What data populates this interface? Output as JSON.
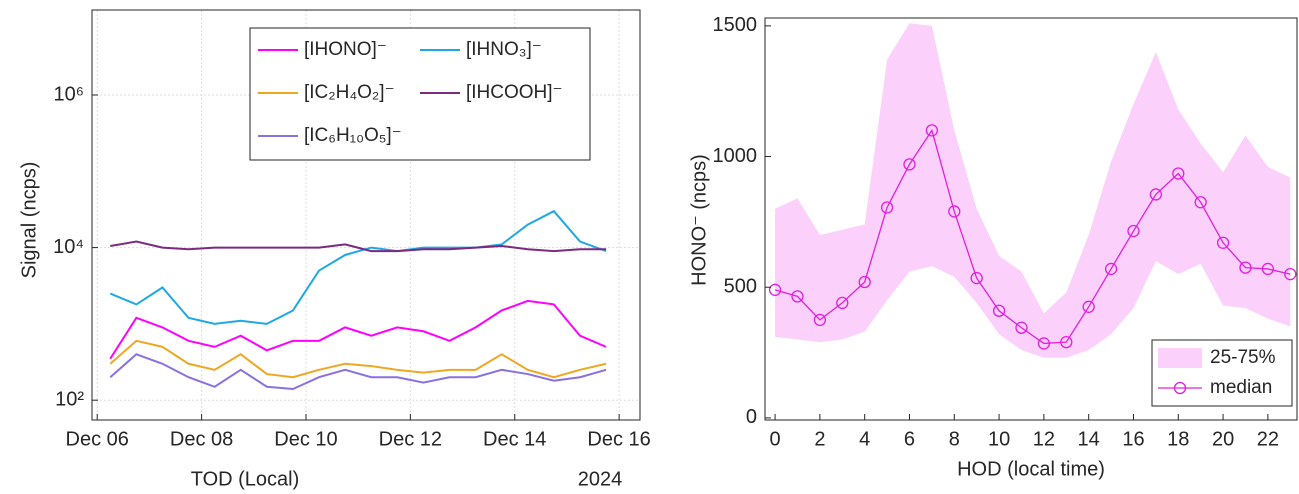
{
  "chart_data": [
    {
      "type": "line",
      "log_y": true,
      "grid": true,
      "legend": "upper right",
      "xlabel": "TOD (Local)",
      "ylabel": "Signal (ncps)",
      "annotation": "2024",
      "x": [
        6.25,
        6.75,
        7.25,
        7.75,
        8.25,
        8.75,
        9.25,
        9.75,
        10.25,
        10.75,
        11.25,
        11.75,
        12.25,
        12.75,
        13.25,
        13.75,
        14.25,
        14.75,
        15.25,
        15.75
      ],
      "xlim": [
        5.9,
        16.4
      ],
      "xticks": [
        {
          "value": 6,
          "label": "Dec 06"
        },
        {
          "value": 8,
          "label": "Dec 08"
        },
        {
          "value": 10,
          "label": "Dec 10"
        },
        {
          "value": 12,
          "label": "Dec 12"
        },
        {
          "value": 14,
          "label": "Dec 14"
        },
        {
          "value": 16,
          "label": "Dec 16"
        }
      ],
      "ylim": [
        55,
        13000000
      ],
      "yticks": [
        {
          "value": 100,
          "label": "10²"
        },
        {
          "value": 10000,
          "label": "10⁴"
        },
        {
          "value": 1000000,
          "label": "10⁶"
        }
      ],
      "series": [
        {
          "name": "[IHONO]⁻",
          "color": "#ff00ff",
          "values": [
            350,
            1200,
            900,
            600,
            500,
            700,
            450,
            600,
            600,
            900,
            700,
            900,
            800,
            600,
            900,
            1500,
            2000,
            1800,
            700,
            500
          ]
        },
        {
          "name": "[IHNO₃]⁻",
          "color": "#1ea8e6",
          "values": [
            2500,
            1800,
            3000,
            1200,
            1000,
            1100,
            1000,
            1500,
            5000,
            8000,
            10000,
            9000,
            10000,
            10000,
            10000,
            11000,
            20000,
            30000,
            12000,
            9000
          ]
        },
        {
          "name": "[IC₂H₄O₂]⁻",
          "color": "#eda823",
          "values": [
            300,
            600,
            500,
            300,
            250,
            400,
            220,
            200,
            250,
            300,
            280,
            250,
            230,
            250,
            250,
            400,
            250,
            200,
            250,
            300
          ]
        },
        {
          "name": "[IHCOOH]⁻",
          "color": "#7b2a80",
          "values": [
            10500,
            12000,
            10000,
            9500,
            10000,
            10000,
            10000,
            10000,
            10000,
            11000,
            9000,
            9000,
            9500,
            9500,
            10000,
            10500,
            9500,
            9000,
            9500,
            9500
          ]
        },
        {
          "name": "[IC₆H₁₀O₅]⁻",
          "color": "#8a70e0",
          "values": [
            200,
            400,
            300,
            200,
            150,
            250,
            150,
            140,
            200,
            250,
            200,
            200,
            170,
            200,
            200,
            250,
            220,
            180,
            200,
            250
          ]
        }
      ]
    },
    {
      "type": "line",
      "log_y": false,
      "grid": false,
      "legend": "lower right",
      "xlabel": "HOD (local time)",
      "ylabel": "HONO⁻ (ncps)",
      "x": [
        0,
        1,
        2,
        3,
        4,
        5,
        6,
        7,
        8,
        9,
        10,
        11,
        12,
        13,
        14,
        15,
        16,
        17,
        18,
        19,
        20,
        21,
        22,
        23
      ],
      "xlim": [
        -0.45,
        23.3
      ],
      "xticks": [
        0,
        2,
        4,
        6,
        8,
        10,
        12,
        14,
        16,
        18,
        20,
        22
      ],
      "ylim": [
        -8,
        1530
      ],
      "yticks": [
        0,
        500,
        1000,
        1500
      ],
      "band": {
        "name": "25-75%",
        "color": "#fbd0fb",
        "lower": [
          310,
          300,
          290,
          300,
          330,
          450,
          560,
          580,
          540,
          440,
          320,
          260,
          230,
          230,
          260,
          320,
          420,
          600,
          550,
          590,
          430,
          420,
          380,
          350
        ],
        "upper": [
          800,
          840,
          700,
          720,
          740,
          1370,
          1510,
          1500,
          1100,
          800,
          620,
          560,
          400,
          480,
          700,
          980,
          1200,
          1400,
          1180,
          1050,
          940,
          1080,
          960,
          920
        ]
      },
      "series": [
        {
          "name": "median",
          "color": "#e020e0",
          "values": [
            490,
            465,
            375,
            440,
            520,
            805,
            970,
            1100,
            790,
            535,
            410,
            345,
            285,
            290,
            425,
            570,
            715,
            855,
            935,
            825,
            670,
            575,
            570,
            550
          ]
        }
      ]
    }
  ]
}
